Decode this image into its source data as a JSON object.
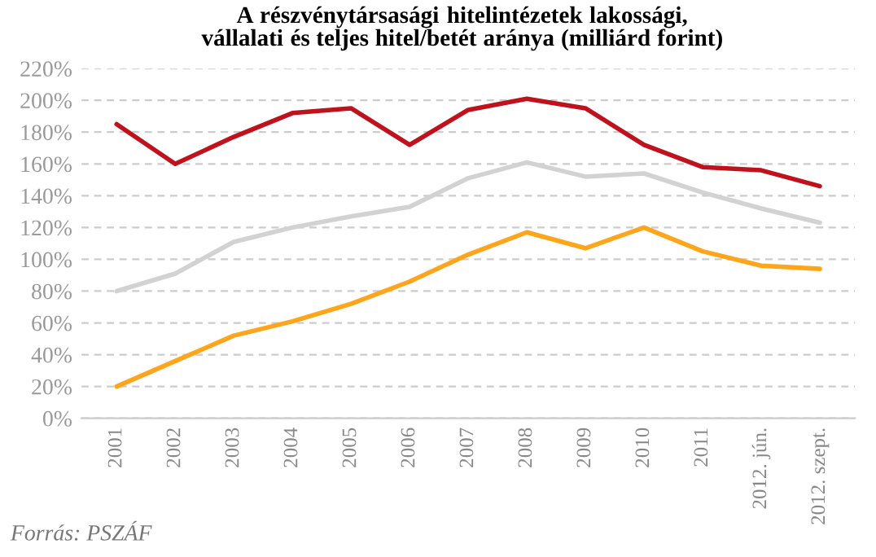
{
  "chart_data": {
    "type": "line",
    "title": "A részvénytársasági hitelintézetek lakossági, vállalati és teljes hitel/betét aránya (milliárd forint)",
    "categories": [
      "2001",
      "2002",
      "2003",
      "2004",
      "2005",
      "2006",
      "2007",
      "2008",
      "2009",
      "2010",
      "2011",
      "2012. jún.",
      "2012. szept."
    ],
    "series": [
      {
        "color": "#ffa51c",
        "values": [
          20,
          36,
          52,
          61,
          72,
          86,
          103,
          117,
          107,
          120,
          105,
          96,
          94
        ]
      },
      {
        "color": "#c0121c",
        "values": [
          185,
          160,
          177,
          192,
          195,
          172,
          194,
          201,
          195,
          172,
          158,
          156,
          146
        ]
      },
      {
        "color": "#d2d2d2",
        "values": [
          80,
          91,
          111,
          120,
          127,
          133,
          151,
          161,
          152,
          154,
          142,
          132,
          123
        ]
      }
    ],
    "ylim": [
      0,
      220
    ],
    "yticks": [
      {
        "value": 0,
        "label": "0%"
      },
      {
        "value": 20,
        "label": "20%"
      },
      {
        "value": 40,
        "label": "40%"
      },
      {
        "value": 60,
        "label": "60%"
      },
      {
        "value": 80,
        "label": "80%"
      },
      {
        "value": 100,
        "label": "100%"
      },
      {
        "value": 120,
        "label": "120%"
      },
      {
        "value": 140,
        "label": "140%"
      },
      {
        "value": 160,
        "label": "160%"
      },
      {
        "value": 180,
        "label": "180%"
      },
      {
        "value": 200,
        "label": "200%"
      },
      {
        "value": 220,
        "label": "220%"
      }
    ],
    "grid": "y",
    "legend": false,
    "marker": "none",
    "line_style": "solid",
    "annotations": [
      "Forrás: PSZÁF"
    ]
  }
}
